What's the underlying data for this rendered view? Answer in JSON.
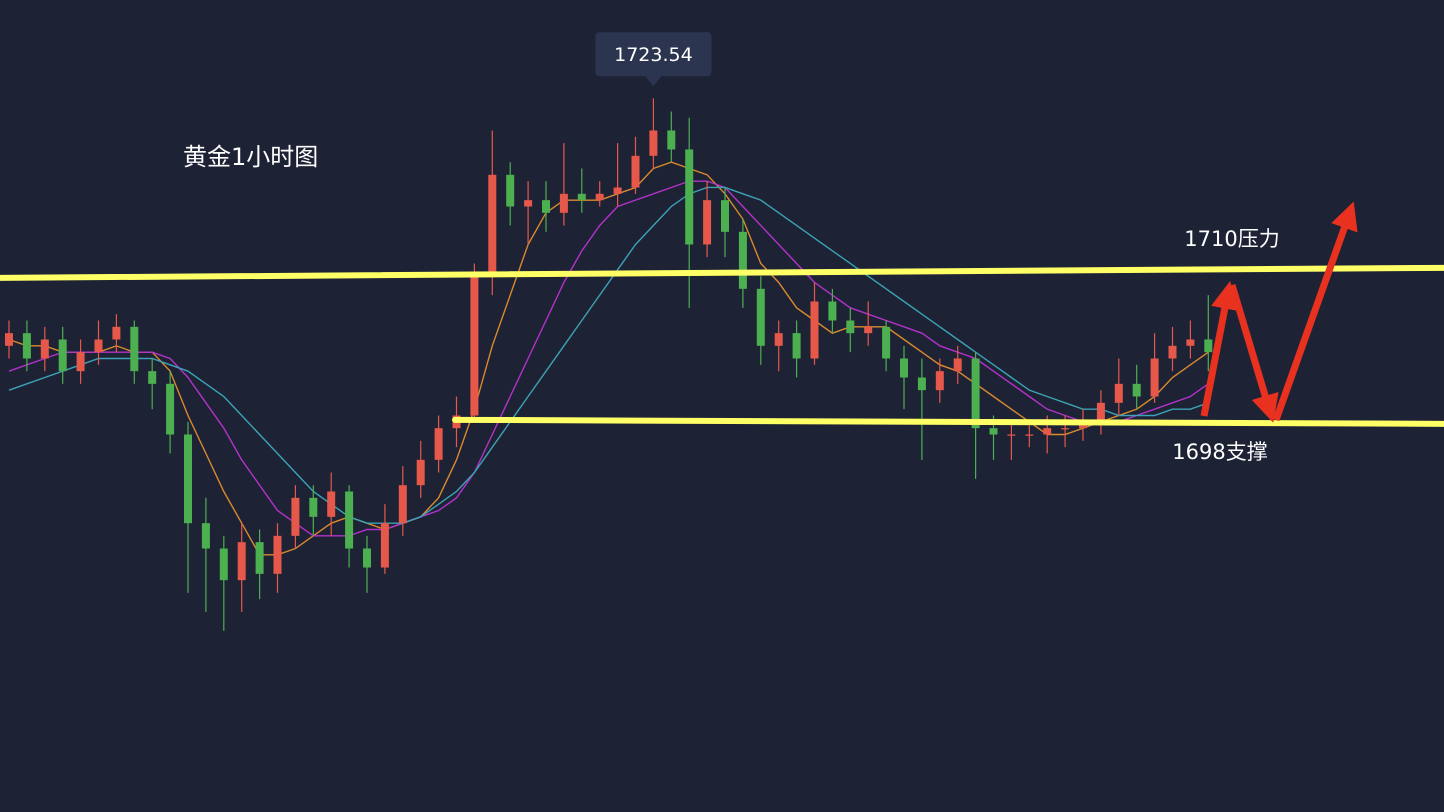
{
  "chart_data": {
    "type": "candlestick",
    "title": "黄金1小时图",
    "ylim": [
      1667.2,
      1731.3
    ],
    "up_color": "#e5584a",
    "down_color": "#4cb050",
    "open": [
      1704,
      1705,
      1703,
      1704.5,
      1702,
      1703.5,
      1704.5,
      1705.5,
      1702,
      1701,
      1697,
      1690,
      1688,
      1685.5,
      1688.5,
      1686,
      1689,
      1692,
      1690.5,
      1692.5,
      1688,
      1686.5,
      1690,
      1693,
      1695,
      1697.5,
      1698.5,
      1709.5,
      1717.5,
      1715,
      1715.5,
      1714.5,
      1716,
      1715.5,
      1716,
      1716.5,
      1719,
      1721,
      1719.5,
      1712,
      1715.5,
      1713,
      1708.5,
      1704,
      1705,
      1703,
      1707.5,
      1706,
      1705,
      1705.5,
      1703,
      1701.5,
      1700.5,
      1702,
      1703,
      1697.5,
      1697,
      1697,
      1697,
      1697.5,
      1697.5,
      1698,
      1699.5,
      1701,
      1700,
      1703,
      1704,
      1704.5
    ],
    "high": [
      1706,
      1706,
      1705.5,
      1705.5,
      1704.5,
      1706,
      1706.5,
      1706,
      1703,
      1702,
      1698,
      1692,
      1689,
      1690,
      1689.5,
      1690,
      1693,
      1693,
      1694,
      1693,
      1689,
      1691.5,
      1694.5,
      1696.5,
      1698.5,
      1700,
      1710.5,
      1721,
      1718.5,
      1717,
      1717,
      1720,
      1718,
      1717,
      1720,
      1720.5,
      1723.54,
      1722.5,
      1722,
      1717,
      1716.5,
      1714,
      1709.5,
      1706,
      1706,
      1709,
      1708.5,
      1707,
      1707.5,
      1706,
      1704,
      1703,
      1703,
      1704,
      1703.5,
      1698.5,
      1698,
      1698,
      1698.5,
      1698.5,
      1699,
      1700.5,
      1703,
      1702.5,
      1705,
      1705.5,
      1706,
      1708
    ],
    "low": [
      1703,
      1702,
      1702,
      1701,
      1701,
      1702.5,
      1703.5,
      1701,
      1699,
      1695.5,
      1684.5,
      1683,
      1681.5,
      1683,
      1684,
      1684.5,
      1688,
      1689,
      1689,
      1686.5,
      1684.5,
      1686,
      1689,
      1692,
      1694,
      1696,
      1698,
      1708,
      1713.5,
      1712,
      1713,
      1713.5,
      1714.5,
      1715,
      1715,
      1716,
      1718,
      1718.5,
      1707,
      1711,
      1711,
      1707,
      1702.5,
      1702,
      1701.5,
      1702.5,
      1705,
      1703.5,
      1704,
      1702,
      1699,
      1695,
      1699.5,
      1701,
      1693.5,
      1695,
      1695,
      1696,
      1695.5,
      1696,
      1696.5,
      1697,
      1698.5,
      1699,
      1699.5,
      1702,
      1703,
      1702
    ],
    "close": [
      1705,
      1703,
      1704.5,
      1702,
      1703.5,
      1704.5,
      1705.5,
      1702,
      1701,
      1697,
      1690,
      1688,
      1685.5,
      1688.5,
      1686,
      1689,
      1692,
      1690.5,
      1692.5,
      1688,
      1686.5,
      1690,
      1693,
      1695,
      1697.5,
      1698.5,
      1709.5,
      1717.5,
      1715,
      1715.5,
      1714.5,
      1716,
      1715.5,
      1716,
      1716.5,
      1719,
      1721,
      1719.5,
      1712,
      1715.5,
      1713,
      1708.5,
      1704,
      1705,
      1703,
      1707.5,
      1706,
      1705,
      1705.5,
      1703,
      1701.5,
      1700.5,
      1702,
      1703,
      1697.5,
      1697,
      1697,
      1697,
      1697.5,
      1697.5,
      1698,
      1699.5,
      1701,
      1700,
      1703,
      1704,
      1704.5,
      1703.5
    ],
    "lines": [
      {
        "color": "#d98a2c",
        "values": [
          1704.5,
          1704,
          1704,
          1703.5,
          1703.5,
          1703.5,
          1704,
          1703.5,
          1703.5,
          1702,
          1698.5,
          1695.5,
          1692.5,
          1690,
          1687.5,
          1687.5,
          1688,
          1689,
          1690,
          1690.5,
          1690,
          1689.5,
          1690,
          1690.5,
          1692,
          1695,
          1699,
          1704,
          1708,
          1712,
          1714.5,
          1715.5,
          1715.5,
          1715.5,
          1716,
          1716.5,
          1718,
          1718.5,
          1718,
          1717.5,
          1716,
          1714,
          1710.5,
          1709,
          1707,
          1706,
          1705,
          1705.5,
          1705.5,
          1705.5,
          1704.5,
          1703.5,
          1702.5,
          1702,
          1701,
          1700,
          1699,
          1698,
          1697,
          1697,
          1697.5,
          1698,
          1698.5,
          1699,
          1700,
          1701.5,
          1702.5,
          1703.5
        ]
      },
      {
        "color": "#b232c9",
        "values": [
          1702,
          1702.5,
          1703,
          1703.5,
          1703.5,
          1703.5,
          1703.5,
          1703.5,
          1703.5,
          1703,
          1701.5,
          1699.5,
          1697.5,
          1695,
          1693,
          1691,
          1690,
          1689,
          1689,
          1689,
          1689.5,
          1689.5,
          1690,
          1690.5,
          1691,
          1692,
          1694,
          1697,
          1700,
          1703,
          1706,
          1709,
          1711.5,
          1713.5,
          1715,
          1715.5,
          1716,
          1716.5,
          1717,
          1717,
          1716.5,
          1715,
          1713.5,
          1712,
          1710.5,
          1709,
          1708,
          1707,
          1706.5,
          1706,
          1705.5,
          1705,
          1704,
          1703.5,
          1703,
          1702,
          1701,
          1700,
          1699,
          1698.5,
          1698,
          1698,
          1698,
          1698.5,
          1699,
          1699.5,
          1700,
          1701
        ]
      },
      {
        "color": "#3ba3b5",
        "values": [
          1700.5,
          1701,
          1701.5,
          1702,
          1702.5,
          1703,
          1703,
          1703,
          1703,
          1702.5,
          1702,
          1701,
          1700,
          1698.5,
          1697,
          1695.5,
          1694,
          1692.5,
          1691.5,
          1690.5,
          1690,
          1690,
          1690,
          1690.5,
          1691.5,
          1692.5,
          1694,
          1696,
          1698,
          1700,
          1702,
          1704,
          1706,
          1708,
          1710,
          1712,
          1713.5,
          1715,
          1716,
          1716.5,
          1716.5,
          1716,
          1715.5,
          1714.5,
          1713.5,
          1712.5,
          1711.5,
          1710.5,
          1709.5,
          1708.5,
          1707.5,
          1706.5,
          1705.5,
          1704.5,
          1703.5,
          1702.5,
          1701.5,
          1700.5,
          1700,
          1699.5,
          1699,
          1699,
          1698.5,
          1698.5,
          1698.5,
          1699,
          1699,
          1699.5
        ]
      }
    ],
    "levels": [
      {
        "value": 1710,
        "label": "1710压力",
        "color": "#ffff66"
      },
      {
        "value": 1698,
        "label": "1698支撑",
        "color": "#ffff66"
      }
    ]
  }
}
